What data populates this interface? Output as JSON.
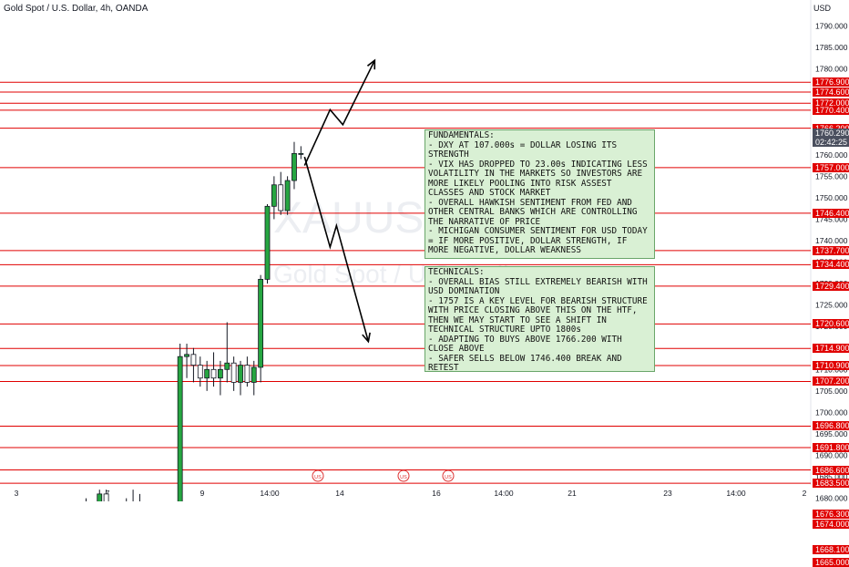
{
  "header": {
    "symbol_title": "Gold Spot / U.S. Dollar, 4h, OANDA",
    "currency": "USD"
  },
  "watermark": {
    "ticker": "XAUUSD",
    "name": "Gold Spot / U.S. Dollar"
  },
  "colors": {
    "up": "#26a641",
    "down": "#131722",
    "level_line": "#e00000",
    "note_bg": "#d9f0d4"
  },
  "price_axis": {
    "ticks": [
      "1790.000",
      "1785.000",
      "1780.000",
      "1775.000",
      "1770.000",
      "1765.000",
      "1760.000",
      "1755.000",
      "1750.000",
      "1745.000",
      "1740.000",
      "1735.000",
      "1730.000",
      "1725.000",
      "1720.000",
      "1715.000",
      "1710.000",
      "1705.000",
      "1700.000",
      "1695.000",
      "1690.000",
      "1685.000",
      "1680.000",
      "1675.000",
      "1670.000"
    ],
    "current_price": "1760.290",
    "countdown": "02:42:25"
  },
  "time_axis": {
    "labels": [
      "3",
      "7",
      "9",
      "14:00",
      "14",
      "16",
      "14:00",
      "21",
      "23",
      "14:00",
      "2"
    ]
  },
  "levels": [
    "1776.900",
    "1774.600",
    "1772.000",
    "1770.400",
    "1766.200",
    "1757.000",
    "1746.400",
    "1737.700",
    "1734.400",
    "1729.400",
    "1720.600",
    "1714.900",
    "1710.900",
    "1707.200",
    "1696.800",
    "1691.800",
    "1686.600",
    "1683.500",
    "1676.300",
    "1674.000",
    "1668.100",
    "1665.000"
  ],
  "fundamentals_note": "FUNDAMENTALS:\n- DXY AT 107.000s = DOLLAR LOSING ITS STRENGTH\n- VIX HAS DROPPED TO 23.00s INDICATING LESS VOLATILITY IN THE MARKETS SO INVESTORS ARE MORE LIKELY POOLING INTO RISK ASSEST CLASSES AND STOCK MARKET\n- OVERALL HAWKISH SENTIMENT FROM FED AND OTHER CENTRAL BANKS WHICH ARE CONTROLLING THE NARRATIVE OF PRICE\n- MICHIGAN CONSUMER SENTIMENT FOR USD TODAY = IF MORE POSITIVE, DOLLAR STRENGTH, IF MORE NEGATIVE, DOLLAR WEAKNESS",
  "technicals_note": "TECHNICALS:\n- OVERALL BIAS STILL EXTREMELY BEARISH WITH USD DOMINATION\n- 1757 IS A KEY LEVEL FOR BEARISH STRUCTURE WITH PRICE CLOSING ABOVE THIS ON THE HTF, THEN WE MAY START TO SEE A SHIFT IN TECHNICAL STRUCTURE UPTO 1800s\n- ADAPTING TO BUYS ABOVE 1766.200 WITH CLOSE ABOVE\n- SAFER SELLS BELOW 1746.400 BREAK AND RETEST",
  "candles": [
    {
      "o": 1678.0,
      "h": 1680.0,
      "l": 1662.0,
      "c": 1670.0
    },
    {
      "o": 1670.0,
      "h": 1676.5,
      "l": 1664.5,
      "c": 1674.5
    },
    {
      "o": 1674.5,
      "h": 1682.0,
      "l": 1672.0,
      "c": 1681.0
    },
    {
      "o": 1681.0,
      "h": 1682.0,
      "l": 1671.0,
      "c": 1676.0
    },
    {
      "o": 1676.0,
      "h": 1678.0,
      "l": 1670.0,
      "c": 1673.0
    },
    {
      "o": 1673.0,
      "h": 1677.0,
      "l": 1668.0,
      "c": 1677.0
    },
    {
      "o": 1677.0,
      "h": 1680.0,
      "l": 1674.0,
      "c": 1679.0
    },
    {
      "o": 1679.0,
      "h": 1682.0,
      "l": 1675.0,
      "c": 1678.0
    },
    {
      "o": 1678.0,
      "h": 1681.0,
      "l": 1674.0,
      "c": 1676.0
    },
    {
      "o": 1676.0,
      "h": 1677.0,
      "l": 1673.0,
      "c": 1675.0
    },
    {
      "o": 1675.0,
      "h": 1676.0,
      "l": 1670.0,
      "c": 1674.0
    },
    {
      "o": 1674.0,
      "h": 1675.0,
      "l": 1668.0,
      "c": 1670.0
    },
    {
      "o": 1670.0,
      "h": 1675.0,
      "l": 1666.0,
      "c": 1673.0
    },
    {
      "o": 1673.0,
      "h": 1676.0,
      "l": 1671.0,
      "c": 1674.0
    },
    {
      "o": 1674.0,
      "h": 1716.0,
      "l": 1673.0,
      "c": 1713.0
    },
    {
      "o": 1713.0,
      "h": 1716.0,
      "l": 1708.0,
      "c": 1713.5
    },
    {
      "o": 1713.5,
      "h": 1715.0,
      "l": 1707.0,
      "c": 1711.0
    },
    {
      "o": 1711.0,
      "h": 1713.0,
      "l": 1706.0,
      "c": 1708.0
    },
    {
      "o": 1708.0,
      "h": 1712.0,
      "l": 1705.0,
      "c": 1710.0
    },
    {
      "o": 1710.0,
      "h": 1714.0,
      "l": 1706.0,
      "c": 1708.0
    },
    {
      "o": 1708.0,
      "h": 1712.0,
      "l": 1704.0,
      "c": 1710.0
    },
    {
      "o": 1710.0,
      "h": 1721.0,
      "l": 1707.0,
      "c": 1711.5
    },
    {
      "o": 1711.5,
      "h": 1713.0,
      "l": 1705.0,
      "c": 1707.0
    },
    {
      "o": 1707.0,
      "h": 1712.0,
      "l": 1704.0,
      "c": 1711.0
    },
    {
      "o": 1711.0,
      "h": 1713.0,
      "l": 1706.0,
      "c": 1707.0
    },
    {
      "o": 1707.0,
      "h": 1712.0,
      "l": 1704.0,
      "c": 1710.5
    },
    {
      "o": 1710.5,
      "h": 1732.0,
      "l": 1707.0,
      "c": 1731.0
    },
    {
      "o": 1731.0,
      "h": 1748.5,
      "l": 1730.0,
      "c": 1748.0
    },
    {
      "o": 1748.0,
      "h": 1755.0,
      "l": 1745.0,
      "c": 1753.0
    },
    {
      "o": 1753.0,
      "h": 1756.0,
      "l": 1746.0,
      "c": 1747.0
    },
    {
      "o": 1747.0,
      "h": 1755.0,
      "l": 1746.0,
      "c": 1754.0
    },
    {
      "o": 1754.0,
      "h": 1763.0,
      "l": 1752.0,
      "c": 1760.3
    },
    {
      "o": 1760.3,
      "h": 1762.0,
      "l": 1759.0,
      "c": 1760.3
    }
  ],
  "projection": {
    "bullish_path": [
      [
        1757.5,
        0
      ],
      [
        1770.5,
        4
      ],
      [
        1767.0,
        6
      ],
      [
        1782.0,
        11
      ]
    ],
    "bearish_path": [
      [
        1759.5,
        0
      ],
      [
        1738.5,
        4
      ],
      [
        1743.5,
        5
      ],
      [
        1716.5,
        10
      ]
    ]
  },
  "event_markers": [
    "US",
    "US",
    "US"
  ]
}
